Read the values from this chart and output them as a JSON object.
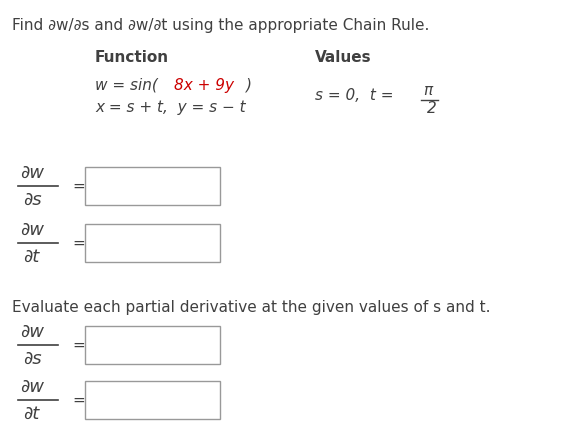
{
  "title": "Find ∂w/∂s and ∂w/∂t using the appropriate Chain Rule.",
  "function_label": "Function",
  "values_label": "Values",
  "evaluate_text": "Evaluate each partial derivative at the given values of s and t.",
  "bg_color": "#ffffff",
  "text_color": "#404040",
  "red_color": "#cc0000",
  "box_edge_color": "#999999",
  "fs_title": 11.0,
  "fs_body": 11.0,
  "fs_partial": 13.0,
  "fs_bold": 11.0
}
